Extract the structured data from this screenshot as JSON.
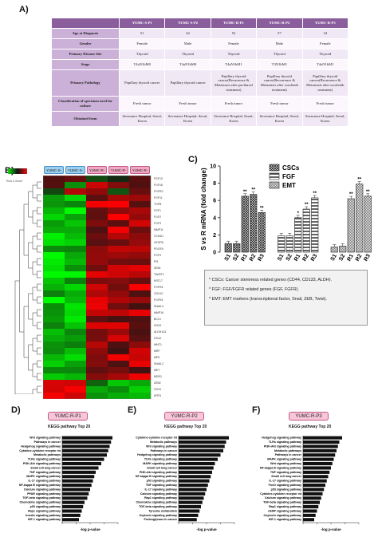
{
  "labels": {
    "a": "A)",
    "b": "B)",
    "c": "C)",
    "d": "D)",
    "e": "E)",
    "f": "F)"
  },
  "tableA": {
    "header": [
      "",
      "YUMC-S-P1",
      "YUMC-S-P2",
      "YUMC-R-P1",
      "YUMC-R-P2",
      "YUMC-R-P3"
    ],
    "rows": [
      {
        "label": "Age at Diagnosis",
        "values": [
          "51",
          "42",
          "52",
          "57",
          "34"
        ]
      },
      {
        "label": "Gender",
        "values": [
          "Female",
          "Male",
          "Female",
          "Male",
          "Female"
        ]
      },
      {
        "label": "Primary Disease Site",
        "values": [
          "Thyroid",
          "Thyroid",
          "Thyroid",
          "Thyroid",
          "Thyroid"
        ]
      },
      {
        "label": "Stage",
        "values": [
          "T4aN1bM0",
          "T4aN1bM0",
          "T4aN1bM1",
          "T3N1bM1",
          "T4aN1bM1"
        ]
      },
      {
        "label": "Primary Pathology",
        "values": [
          "Papillary thyroid cancer",
          "Papillary thyroid cancer",
          "Papillary thyroid cancer(Recurrence & Metastasis after paclitaxel treatment)",
          "Papillary thyroid cancer(Recurrence & Metastasis after sorafenib treatment)",
          "Papillary thyroid cancer(Recurrence & Metastasis after sorafenib treatment)"
        ]
      },
      {
        "label": "Classification of specimen used for culture",
        "values": [
          "Fresh tumor",
          "Fresh tumor",
          "Fresh tumor",
          "Fresh tumor",
          "Fresh tumor"
        ]
      },
      {
        "label": "Obtained from",
        "values": [
          "Severance Hospital, Seoul, Korea",
          "Severance Hospital, Seoul, Korea",
          "Severance Hospital, Seoul, Korea",
          "Severance Hospital, Seoul, Korea",
          "Severance Hospital, Seoul, Korea"
        ]
      }
    ]
  },
  "heatmap": {
    "samples": [
      "YUMC-S-P1",
      "YUMC-S-P2",
      "YUMC-R-P1",
      "YUMC-R-P2",
      "YUMC-R-P3"
    ],
    "sample_colors": [
      "#9ad0f0",
      "#9ad0f0",
      "#f2a8c4",
      "#f2a8c4",
      "#f2a8c4"
    ],
    "genes": [
      "FGF10",
      "FGF16",
      "FGFR2",
      "FGF11",
      "TGFB",
      "FGF1",
      "FGF2",
      "FGF3",
      "MMP11",
      "CCND1",
      "VEGFB",
      "PDGFA",
      "FGF3",
      "PI3",
      "ZEB1",
      "TWIST1",
      "KRT17",
      "FGFR4",
      "CDX10",
      "FGFR4",
      "SNAIL3",
      "MMP16",
      "BCL3",
      "SOX2",
      "ALDH1A1",
      "CD44",
      "WNT1",
      "MRF",
      "MPK",
      "SNAIL2",
      "MET",
      "MDR1",
      "ZEB2",
      "CD24",
      "KRT8"
    ],
    "scale_label": "Row Z-Score"
  },
  "chart_data": {
    "type": "bar",
    "ylabel": "S vs R mRNA (fold change)",
    "ylim": [
      0,
      10
    ],
    "yticks": [
      0,
      2,
      4,
      6,
      8,
      10
    ],
    "legend": [
      "CSCs",
      "FGF",
      "EMT"
    ],
    "groups": [
      {
        "name": "CSCs",
        "categories": [
          "S1",
          "S2",
          "R1",
          "R2",
          "R3"
        ],
        "values": [
          1.0,
          1.0,
          6.5,
          6.7,
          4.6
        ],
        "sig": [
          "",
          "",
          "**",
          "**",
          "**"
        ]
      },
      {
        "name": "FGF",
        "categories": [
          "S1",
          "S2",
          "R1",
          "R2",
          "R3"
        ],
        "values": [
          1.9,
          1.9,
          4.0,
          5.0,
          6.3
        ],
        "sig": [
          "",
          "",
          "*",
          "**",
          "**"
        ]
      },
      {
        "name": "EMT",
        "categories": [
          "S1",
          "S2",
          "R1",
          "R2",
          "R3"
        ],
        "values": [
          0.6,
          0.7,
          6.2,
          7.9,
          6.5
        ],
        "sig": [
          "",
          "",
          "**",
          "**",
          "**"
        ]
      }
    ]
  },
  "captionC": [
    "* CSCs: Cancer stemness related genes (CD44, CD133, ALDH).",
    "* FGF: FGF/FGFR related genes (FGF, FGFR).",
    "* EMT: EMT markers (transcriptional factor, Snail, ZEB, Twist)."
  ],
  "kegg": [
    {
      "tag": "YUMC-R-P1",
      "title": "KEGG pathway Top 20",
      "xlabel": "-log p-value",
      "pathways": [
        "Wnt signaling pathway",
        "Pathways in cancer",
        "Hedgehog signaling pathway",
        "Cytokine-cytokine receptor int",
        "Metabolic pathways",
        "TLRs signaling pathway",
        "PI3K-Akt signaling pathway",
        "Small cell lung cancer",
        "TNF signaling pathway",
        "MAPK signaling pathway",
        "IL-17 signaling pathway",
        "NF-kappa B signaling pathway",
        "Calcium signaling pathway",
        "PPAR signaling pathway",
        "TGF-beta signaling pathway",
        "Chemokine signaling pathway",
        "p53 signaling pathway",
        "Rap1 signaling pathway",
        "Insulin signaling pathway",
        "HIF-1 signaling pathway"
      ],
      "values": [
        18,
        17.5,
        17,
        16.5,
        16,
        15,
        14,
        13,
        12,
        11.5,
        11,
        10.5,
        10,
        9.5,
        9,
        8,
        7.5,
        7,
        6.5,
        6
      ]
    },
    {
      "tag": "YUMC-R-P2",
      "title": "KEGG pathway Top 20",
      "xlabel": "-log p-value",
      "pathways": [
        "Cytokine-cytokine receptor int",
        "Metabolic pathways",
        "Wnt signaling pathway",
        "Pathways in cancer",
        "Hedgehog signaling pathway",
        "TLRs signaling pathway",
        "MAPK signaling pathway",
        "Small cell lung cancer",
        "PI3K-Akt signaling pathway",
        "NF-kappa B signaling pathway",
        "p53 signaling pathway",
        "TNF signaling pathway",
        "IL-17 signaling pathway",
        "Calcium signaling pathway",
        "Rap1 signaling pathway",
        "Chemokine signaling pathway",
        "TGF-beta signaling pathway",
        "Tyrosine metabolism",
        "Oxytocin signaling pathway",
        "Proteoglycans in cancer"
      ],
      "values": [
        18,
        17,
        16.5,
        16,
        15,
        14,
        13,
        12.5,
        12,
        11.5,
        11,
        10.5,
        10,
        9.5,
        9,
        8.5,
        8,
        7.5,
        7,
        6.5
      ]
    },
    {
      "tag": "YUMC-R-P3",
      "title": "KEGG pathway Top 20",
      "xlabel": "-log p-value",
      "pathways": [
        "Hedgehog signaling pathway",
        "TLRs signaling pathway",
        "PI3K-Akt signaling pathway",
        "Metabolic pathways",
        "Pathways in cancer",
        "MAPK signaling pathway",
        "Wnt signaling pathway",
        "NF-kappa B signaling pathway",
        "TNF signaling pathway",
        "Small cell lung cancer",
        "IL-17 signaling pathway",
        "FoxO signaling pathway",
        "p53 signaling pathway",
        "Cytokine-cytokine receptor int",
        "Calcium signaling pathway",
        "TGF-beta signaling pathway",
        "Rap1 signaling pathway",
        "cAMP signaling pathway",
        "Oxytocin signaling pathway",
        "HIF-1 signaling pathway"
      ],
      "values": [
        14,
        13,
        12.5,
        12,
        11.5,
        11,
        10.5,
        10,
        9.5,
        9,
        8.5,
        8,
        7.5,
        7,
        6.5,
        6,
        5.5,
        5,
        4.5,
        4
      ]
    }
  ]
}
